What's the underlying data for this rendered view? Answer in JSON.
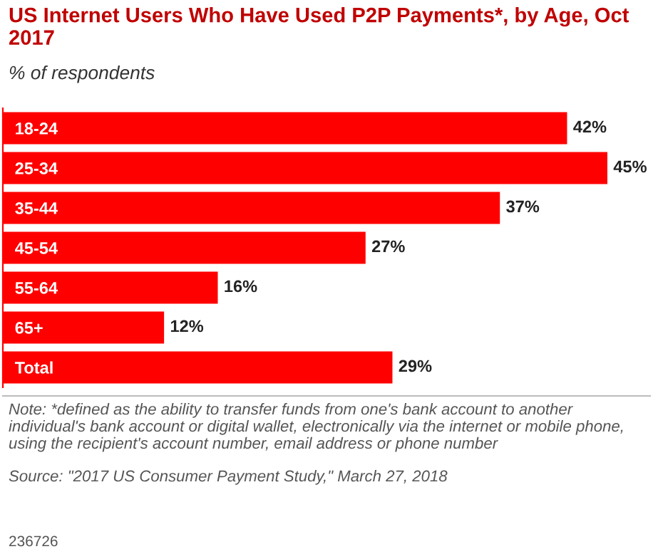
{
  "chart_data": {
    "type": "bar",
    "orientation": "horizontal",
    "title": "US Internet Users Who Have Used P2P Payments*, by Age, Oct 2017",
    "subtitle": "% of respondents",
    "categories": [
      "18-24",
      "25-34",
      "35-44",
      "45-54",
      "55-64",
      "65+",
      "Total"
    ],
    "values": [
      42,
      45,
      37,
      27,
      16,
      12,
      29
    ],
    "value_labels": [
      "42%",
      "45%",
      "37%",
      "27%",
      "16%",
      "12%",
      "29%"
    ],
    "color": "#ff0000",
    "grid": false,
    "legend": false,
    "annotations": [
      "Note: *defined as the ability to transfer funds from one's bank account to another individual's bank account or digital wallet, electronically via the internet or mobile phone, using the recipient's account number, email address or phone number",
      "Source: \"2017 US Consumer Payment Study,\" March 27, 2018",
      "236726"
    ]
  }
}
